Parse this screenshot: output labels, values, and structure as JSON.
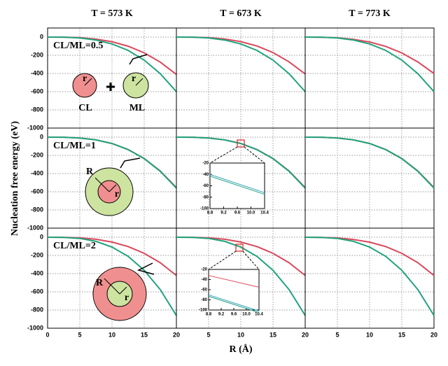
{
  "column_titles": [
    "T = 573 K",
    "T = 673 K",
    "T = 773 K"
  ],
  "ylabel": "Nucleation free energy (eV)",
  "xlabel": "R (Å)",
  "chart_data": [
    {
      "type": "line",
      "row_label": "CL/ML=0.5",
      "diagram_labels": [
        "r",
        "r",
        "CL",
        "ML"
      ],
      "x": [
        0,
        2.5,
        5,
        7.5,
        10,
        12.5,
        15,
        17.5,
        20
      ],
      "xlim": [
        0,
        20
      ],
      "xticks": [
        0,
        5,
        10,
        15,
        20
      ],
      "ylim": [
        -1000,
        100
      ],
      "yticks": [
        0,
        -200,
        -400,
        -600,
        -800,
        -1000
      ],
      "grid": true,
      "series": [
        {
          "color": "#d9485a",
          "values": [
            0,
            -1,
            -6,
            -22,
            -51,
            -100,
            -173,
            -275,
            -410
          ]
        },
        {
          "color": "#1fa37d",
          "values": [
            0,
            -1,
            -9,
            -32,
            -75,
            -146,
            -253,
            -402,
            -600
          ]
        }
      ]
    },
    {
      "type": "line",
      "x": [
        0,
        2.5,
        5,
        7.5,
        10,
        12.5,
        15,
        17.5,
        20
      ],
      "xlim": [
        0,
        20
      ],
      "xticks": [
        0,
        5,
        10,
        15,
        20
      ],
      "ylim": [
        -1000,
        100
      ],
      "yticks": [
        0,
        -200,
        -400,
        -600,
        -800,
        -1000
      ],
      "grid": true,
      "series": [
        {
          "color": "#d9485a",
          "values": [
            0,
            -1,
            -6,
            -21,
            -50,
            -98,
            -170,
            -272,
            -405
          ]
        },
        {
          "color": "#1fa37d",
          "values": [
            0,
            -1,
            -9,
            -32,
            -75,
            -146,
            -253,
            -402,
            -600
          ]
        }
      ]
    },
    {
      "type": "line",
      "x": [
        0,
        2.5,
        5,
        7.5,
        10,
        12.5,
        15,
        17.5,
        20
      ],
      "xlim": [
        0,
        20
      ],
      "xticks": [
        0,
        5,
        10,
        15,
        20
      ],
      "ylim": [
        -1000,
        100
      ],
      "yticks": [
        0,
        -200,
        -400,
        -600,
        -800,
        -1000
      ],
      "grid": true,
      "series": [
        {
          "color": "#d9485a",
          "values": [
            0,
            -2,
            -8,
            -25,
            -54,
            -102,
            -174,
            -274,
            -400
          ]
        },
        {
          "color": "#1fa37d",
          "values": [
            0,
            -1,
            -9,
            -32,
            -75,
            -146,
            -253,
            -402,
            -600
          ]
        }
      ]
    },
    {
      "type": "line",
      "row_label": "CL/ML=1",
      "diagram_labels": [
        "R",
        "r"
      ],
      "x": [
        0,
        2.5,
        5,
        7.5,
        10,
        12.5,
        15,
        17.5,
        20
      ],
      "xlim": [
        0,
        20
      ],
      "xticks": [
        0,
        5,
        10,
        15,
        20
      ],
      "ylim": [
        -1000,
        100
      ],
      "yticks": [
        0,
        -200,
        -400,
        -600,
        -800,
        -1000
      ],
      "grid": true,
      "series": [
        {
          "color": "#d9485a",
          "values": [
            0,
            -1,
            -9,
            -29,
            -69,
            -136,
            -234,
            -372,
            -555
          ]
        },
        {
          "color": "#1fa37d",
          "values": [
            0,
            -1,
            -9,
            -30,
            -70,
            -137,
            -236,
            -375,
            -560
          ]
        }
      ]
    },
    {
      "type": "line",
      "x": [
        0,
        2.5,
        5,
        7.5,
        10,
        12.5,
        15,
        17.5,
        20
      ],
      "xlim": [
        0,
        20
      ],
      "xticks": [
        0,
        5,
        10,
        15,
        20
      ],
      "ylim": [
        -1000,
        100
      ],
      "yticks": [
        0,
        -200,
        -400,
        -600,
        -800,
        -1000
      ],
      "grid": true,
      "series": [
        {
          "color": "#d9485a",
          "values": [
            0,
            -1,
            -9,
            -29,
            -69,
            -136,
            -234,
            -372,
            -555
          ]
        },
        {
          "color": "#1fa37d",
          "values": [
            0,
            -1,
            -9,
            -30,
            -70,
            -137,
            -236,
            -375,
            -560
          ]
        }
      ],
      "inset": {
        "type": "line",
        "x": [
          8.8,
          10.4
        ],
        "xlim": [
          8.8,
          10.4
        ],
        "xticks": [
          8.8,
          9.2,
          9.6,
          {
            "value": 10,
            "label": "10.0"
          },
          10.4
        ],
        "ylim": [
          -100,
          -20
        ],
        "yticks": [
          -20,
          -40,
          -60,
          -80,
          -100
        ],
        "series": [
          {
            "color": "#2f9fbf",
            "values": [
              -40,
              -72
            ]
          },
          {
            "color": "#1fa37d",
            "values": [
              -43,
              -75
            ]
          }
        ]
      }
    },
    {
      "type": "line",
      "x": [
        0,
        2.5,
        5,
        7.5,
        10,
        12.5,
        15,
        17.5,
        20
      ],
      "xlim": [
        0,
        20
      ],
      "xticks": [
        0,
        5,
        10,
        15,
        20
      ],
      "ylim": [
        -1000,
        100
      ],
      "yticks": [
        0,
        -200,
        -400,
        -600,
        -800,
        -1000
      ],
      "grid": true,
      "series": [
        {
          "color": "#d9485a",
          "values": [
            0,
            -1,
            -9,
            -29,
            -69,
            -136,
            -234,
            -372,
            -555
          ]
        },
        {
          "color": "#1fa37d",
          "values": [
            0,
            -1,
            -9,
            -30,
            -70,
            -137,
            -236,
            -375,
            -560
          ]
        }
      ]
    },
    {
      "type": "line",
      "row_label": "CL/ML=2",
      "diagram_labels": [
        "R",
        "r"
      ],
      "x": [
        0,
        2.5,
        5,
        7.5,
        10,
        12.5,
        15,
        17.5,
        20
      ],
      "xlim": [
        0,
        20
      ],
      "xticks": [
        0,
        5,
        10,
        15,
        20
      ],
      "ylim": [
        -1000,
        100
      ],
      "yticks": [
        0,
        -200,
        -400,
        -600,
        -800,
        -1000
      ],
      "grid": true,
      "series": [
        {
          "color": "#d9485a",
          "values": [
            0,
            -1,
            -7,
            -22,
            -53,
            -102,
            -177,
            -281,
            -420
          ]
        },
        {
          "color": "#1fa37d",
          "values": [
            0,
            -2,
            -13,
            -45,
            -108,
            -210,
            -363,
            -576,
            -860
          ]
        }
      ]
    },
    {
      "type": "line",
      "x": [
        0,
        2.5,
        5,
        7.5,
        10,
        12.5,
        15,
        17.5,
        20
      ],
      "xlim": [
        0,
        20
      ],
      "xticks": [
        0,
        5,
        10,
        15,
        20
      ],
      "ylim": [
        -1000,
        100
      ],
      "yticks": [
        0,
        -200,
        -400,
        -600,
        -800,
        -1000
      ],
      "grid": true,
      "series": [
        {
          "color": "#d9485a",
          "values": [
            0,
            -1,
            -7,
            -22,
            -53,
            -102,
            -177,
            -281,
            -420
          ]
        },
        {
          "color": "#1fa37d",
          "values": [
            0,
            -2,
            -13,
            -45,
            -108,
            -210,
            -363,
            -576,
            -860
          ]
        }
      ],
      "inset": {
        "type": "line",
        "x": [
          8.8,
          10.4
        ],
        "xlim": [
          8.8,
          10.4
        ],
        "xticks": [
          8.8,
          9.2,
          9.6,
          {
            "value": 10,
            "label": "10.0"
          },
          10.4
        ],
        "ylim": [
          -100,
          -20
        ],
        "yticks": [
          -20,
          -40,
          -60,
          -80,
          -100
        ],
        "series": [
          {
            "color": "#d9485a",
            "values": [
              -32,
              -55
            ]
          },
          {
            "color": "#2f9fbf",
            "values": [
              -70,
              -102
            ]
          },
          {
            "color": "#1fa37d",
            "values": [
              -73,
              -105
            ]
          }
        ]
      }
    },
    {
      "type": "line",
      "x": [
        0,
        2.5,
        5,
        7.5,
        10,
        12.5,
        15,
        17.5,
        20
      ],
      "xlim": [
        0,
        20
      ],
      "xticks": [
        0,
        5,
        10,
        15,
        20
      ],
      "ylim": [
        -1000,
        100
      ],
      "yticks": [
        0,
        -200,
        -400,
        -600,
        -800,
        -1000
      ],
      "grid": true,
      "series": [
        {
          "color": "#d9485a",
          "values": [
            0,
            -2,
            -8,
            -25,
            -54,
            -102,
            -177,
            -280,
            -420
          ]
        },
        {
          "color": "#1fa37d",
          "values": [
            0,
            -2,
            -13,
            -45,
            -108,
            -210,
            -363,
            -576,
            -860
          ]
        }
      ]
    }
  ]
}
